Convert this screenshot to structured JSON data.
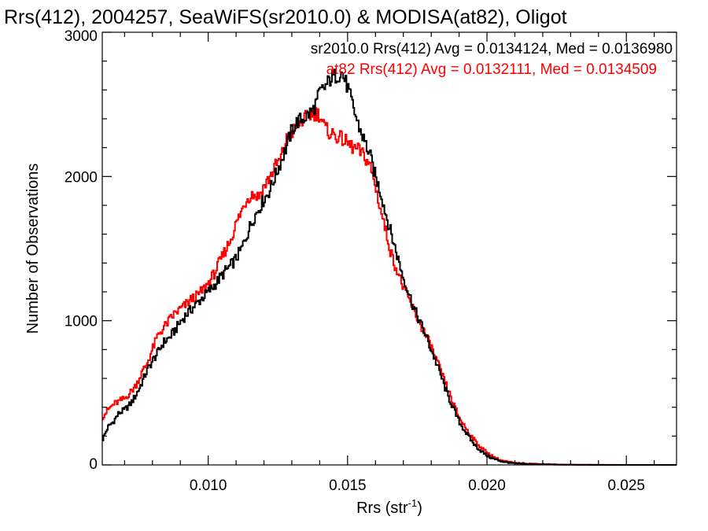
{
  "chart_data": {
    "type": "histogram",
    "title": "Rrs(412), 2004257, SeaWiFS(sr2010.0) & MODISA(at82), Oligot",
    "xlabel_main": "Rrs (str",
    "xlabel_sup": "-1",
    "xlabel_close": ")",
    "ylabel": "Number of Observations",
    "xlim": [
      0.0062,
      0.0268
    ],
    "ylim": [
      0,
      3000
    ],
    "xticks": [
      0.01,
      0.015,
      0.02,
      0.025
    ],
    "xtick_labels": [
      "0.010",
      "0.015",
      "0.020",
      "0.025"
    ],
    "yticks": [
      0,
      1000,
      2000,
      3000
    ],
    "ytick_labels": [
      "0",
      "1000",
      "2000",
      "3000"
    ],
    "bin_width": 0.0001,
    "legend_placement": "top-right",
    "series": [
      {
        "name": "sr2010.0",
        "legend": "sr2010.0 Rrs(412) Avg = 0.0134124, Med = 0.0136980",
        "color": "#000000",
        "points": [
          [
            0.0062,
            170
          ],
          [
            0.0064,
            260
          ],
          [
            0.0066,
            300
          ],
          [
            0.0068,
            360
          ],
          [
            0.007,
            380
          ],
          [
            0.0072,
            420
          ],
          [
            0.0074,
            480
          ],
          [
            0.0076,
            560
          ],
          [
            0.0078,
            650
          ],
          [
            0.008,
            720
          ],
          [
            0.0082,
            780
          ],
          [
            0.0084,
            850
          ],
          [
            0.0086,
            880
          ],
          [
            0.0088,
            930
          ],
          [
            0.009,
            990
          ],
          [
            0.0092,
            1040
          ],
          [
            0.0094,
            1080
          ],
          [
            0.0096,
            1120
          ],
          [
            0.0098,
            1160
          ],
          [
            0.01,
            1200
          ],
          [
            0.0102,
            1240
          ],
          [
            0.0104,
            1290
          ],
          [
            0.0106,
            1340
          ],
          [
            0.0108,
            1380
          ],
          [
            0.011,
            1430
          ],
          [
            0.0112,
            1500
          ],
          [
            0.0114,
            1600
          ],
          [
            0.0116,
            1700
          ],
          [
            0.0118,
            1770
          ],
          [
            0.012,
            1840
          ],
          [
            0.0122,
            1900
          ],
          [
            0.0124,
            2000
          ],
          [
            0.0126,
            2100
          ],
          [
            0.0128,
            2200
          ],
          [
            0.013,
            2320
          ],
          [
            0.0132,
            2380
          ],
          [
            0.0134,
            2400
          ],
          [
            0.0136,
            2430
          ],
          [
            0.0138,
            2470
          ],
          [
            0.014,
            2580
          ],
          [
            0.0142,
            2620
          ],
          [
            0.0144,
            2680
          ],
          [
            0.0146,
            2700
          ],
          [
            0.0148,
            2720
          ],
          [
            0.015,
            2620
          ],
          [
            0.0152,
            2480
          ],
          [
            0.0154,
            2350
          ],
          [
            0.0156,
            2250
          ],
          [
            0.0158,
            2150
          ],
          [
            0.016,
            2000
          ],
          [
            0.0162,
            1880
          ],
          [
            0.0164,
            1720
          ],
          [
            0.0166,
            1580
          ],
          [
            0.0168,
            1440
          ],
          [
            0.017,
            1300
          ],
          [
            0.0172,
            1190
          ],
          [
            0.0174,
            1080
          ],
          [
            0.0176,
            990
          ],
          [
            0.0178,
            900
          ],
          [
            0.018,
            800
          ],
          [
            0.0182,
            700
          ],
          [
            0.0184,
            590
          ],
          [
            0.0186,
            480
          ],
          [
            0.0188,
            390
          ],
          [
            0.019,
            300
          ],
          [
            0.0192,
            240
          ],
          [
            0.0194,
            180
          ],
          [
            0.0196,
            130
          ],
          [
            0.0198,
            95
          ],
          [
            0.02,
            65
          ],
          [
            0.0202,
            45
          ],
          [
            0.0204,
            32
          ],
          [
            0.0206,
            22
          ],
          [
            0.0208,
            15
          ],
          [
            0.021,
            10
          ],
          [
            0.0215,
            6
          ],
          [
            0.022,
            4
          ],
          [
            0.0225,
            2
          ],
          [
            0.023,
            1
          ],
          [
            0.024,
            0
          ],
          [
            0.0268,
            0
          ]
        ]
      },
      {
        "name": "at82",
        "legend": "at82 Rrs(412) Avg = 0.0132111, Med = 0.0134509",
        "color": "#ff0000",
        "points": [
          [
            0.0062,
            330
          ],
          [
            0.0064,
            380
          ],
          [
            0.0066,
            420
          ],
          [
            0.0068,
            440
          ],
          [
            0.007,
            460
          ],
          [
            0.0072,
            500
          ],
          [
            0.0074,
            550
          ],
          [
            0.0076,
            630
          ],
          [
            0.0078,
            700
          ],
          [
            0.008,
            800
          ],
          [
            0.0082,
            900
          ],
          [
            0.0084,
            950
          ],
          [
            0.0086,
            1000
          ],
          [
            0.0088,
            1050
          ],
          [
            0.009,
            1080
          ],
          [
            0.0092,
            1110
          ],
          [
            0.0094,
            1150
          ],
          [
            0.0096,
            1170
          ],
          [
            0.0098,
            1210
          ],
          [
            0.01,
            1260
          ],
          [
            0.0102,
            1320
          ],
          [
            0.0104,
            1400
          ],
          [
            0.0106,
            1480
          ],
          [
            0.0108,
            1560
          ],
          [
            0.011,
            1670
          ],
          [
            0.0112,
            1760
          ],
          [
            0.0114,
            1850
          ],
          [
            0.0116,
            1880
          ],
          [
            0.0118,
            1860
          ],
          [
            0.012,
            1930
          ],
          [
            0.0122,
            1990
          ],
          [
            0.0124,
            2070
          ],
          [
            0.0126,
            2120
          ],
          [
            0.0128,
            2250
          ],
          [
            0.013,
            2300
          ],
          [
            0.0132,
            2360
          ],
          [
            0.0134,
            2390
          ],
          [
            0.0136,
            2420
          ],
          [
            0.0138,
            2440
          ],
          [
            0.014,
            2430
          ],
          [
            0.0142,
            2330
          ],
          [
            0.0144,
            2300
          ],
          [
            0.0146,
            2280
          ],
          [
            0.0148,
            2260
          ],
          [
            0.015,
            2230
          ],
          [
            0.0152,
            2200
          ],
          [
            0.0154,
            2180
          ],
          [
            0.0156,
            2140
          ],
          [
            0.0158,
            2080
          ],
          [
            0.016,
            1930
          ],
          [
            0.0162,
            1760
          ],
          [
            0.0164,
            1600
          ],
          [
            0.0166,
            1440
          ],
          [
            0.0168,
            1340
          ],
          [
            0.017,
            1230
          ],
          [
            0.0172,
            1150
          ],
          [
            0.0174,
            1060
          ],
          [
            0.0176,
            980
          ],
          [
            0.0178,
            900
          ],
          [
            0.018,
            820
          ],
          [
            0.0182,
            720
          ],
          [
            0.0184,
            620
          ],
          [
            0.0186,
            520
          ],
          [
            0.0188,
            420
          ],
          [
            0.019,
            330
          ],
          [
            0.0192,
            270
          ],
          [
            0.0194,
            210
          ],
          [
            0.0196,
            160
          ],
          [
            0.0198,
            120
          ],
          [
            0.02,
            85
          ],
          [
            0.0202,
            60
          ],
          [
            0.0204,
            40
          ],
          [
            0.0206,
            28
          ],
          [
            0.0208,
            20
          ],
          [
            0.021,
            14
          ],
          [
            0.0215,
            9
          ],
          [
            0.022,
            6
          ],
          [
            0.0225,
            3
          ],
          [
            0.023,
            2
          ],
          [
            0.024,
            1
          ],
          [
            0.025,
            0
          ],
          [
            0.0268,
            0
          ]
        ]
      }
    ]
  }
}
